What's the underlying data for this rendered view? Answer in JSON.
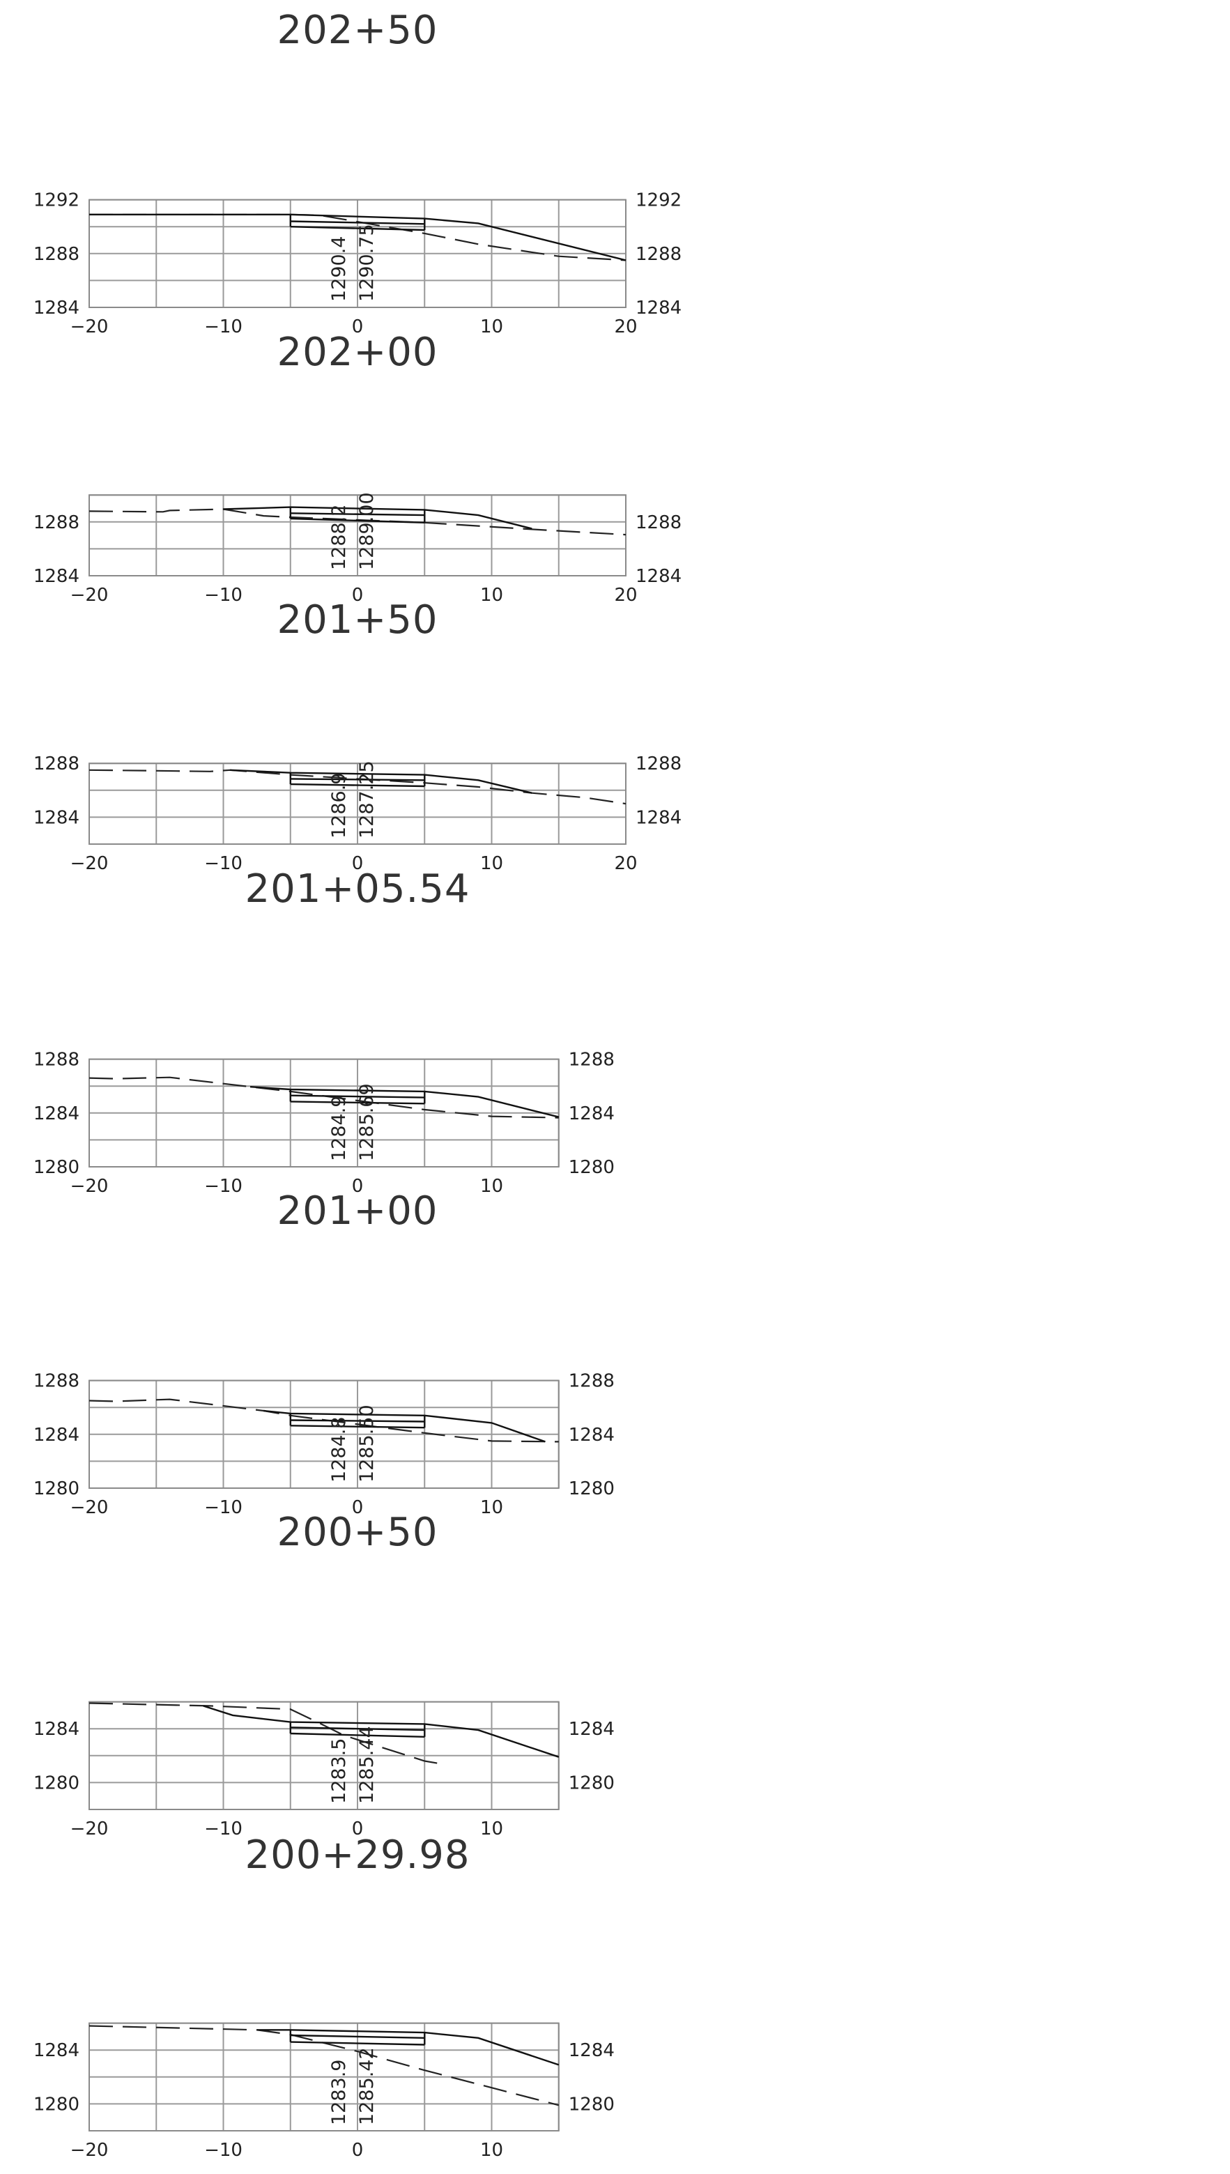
{
  "chart_data": [
    {
      "type": "line",
      "title": "202+50",
      "xlim": [
        -20,
        20
      ],
      "ylim": [
        1284,
        1292
      ],
      "yticks": [
        1284,
        1288,
        1292
      ],
      "xticks": [
        -20,
        -10,
        0,
        10,
        20
      ],
      "grid": true,
      "elev_labels": [
        "1290.4",
        "1290.75"
      ],
      "series": [
        {
          "style": "dashed",
          "x": [
            -20,
            -5,
            -2.8,
            5,
            9,
            15,
            20
          ],
          "y": [
            1290.9,
            1290.9,
            1290.85,
            1289.5,
            1288.7,
            1287.8,
            1287.5
          ]
        },
        {
          "style": "solid",
          "x": [
            -20,
            -15,
            -5,
            5,
            9,
            20
          ],
          "y": [
            1290.9,
            1290.9,
            1290.9,
            1290.6,
            1290.25,
            1287.5
          ]
        },
        {
          "style": "solid",
          "x": [
            -5,
            5
          ],
          "y": [
            1290.4,
            1290.2
          ]
        },
        {
          "style": "solid",
          "x": [
            -5,
            5
          ],
          "y": [
            1290.0,
            1289.75
          ]
        },
        {
          "style": "solid",
          "x": [
            -5,
            -5
          ],
          "y": [
            1290.9,
            1290.0
          ]
        },
        {
          "style": "solid",
          "x": [
            5,
            5
          ],
          "y": [
            1290.6,
            1289.75
          ]
        }
      ]
    },
    {
      "type": "line",
      "title": "202+00",
      "xlim": [
        -20,
        20
      ],
      "ylim": [
        1284,
        1290
      ],
      "yticks": [
        1284,
        1288
      ],
      "xticks": [
        -20,
        -10,
        0,
        10,
        20
      ],
      "grid": true,
      "elev_labels": [
        "1288.2",
        "1289.00"
      ],
      "series": [
        {
          "style": "dashed",
          "x": [
            -20,
            -14.5,
            -14,
            -10,
            -7,
            -5,
            5,
            13,
            20
          ],
          "y": [
            1288.8,
            1288.75,
            1288.85,
            1288.95,
            1288.45,
            1288.35,
            1287.95,
            1287.45,
            1287.05
          ]
        },
        {
          "style": "solid",
          "x": [
            -10,
            -5,
            5,
            9,
            13
          ],
          "y": [
            1288.95,
            1289.1,
            1288.9,
            1288.5,
            1287.5
          ]
        },
        {
          "style": "solid",
          "x": [
            -5,
            5
          ],
          "y": [
            1288.65,
            1288.5
          ]
        },
        {
          "style": "solid",
          "x": [
            -5,
            5
          ],
          "y": [
            1288.25,
            1287.95
          ]
        },
        {
          "style": "solid",
          "x": [
            -5,
            -5
          ],
          "y": [
            1289.1,
            1288.25
          ]
        },
        {
          "style": "solid",
          "x": [
            5,
            5
          ],
          "y": [
            1288.9,
            1287.95
          ]
        }
      ]
    },
    {
      "type": "line",
      "title": "201+50",
      "xlim": [
        -20,
        20
      ],
      "ylim": [
        1282,
        1288
      ],
      "yticks": [
        1284,
        1288
      ],
      "xticks": [
        -20,
        -10,
        0,
        10,
        20
      ],
      "grid": true,
      "elev_labels": [
        "1286.9",
        "1287.25"
      ],
      "series": [
        {
          "style": "dashed",
          "x": [
            -20,
            -15,
            -11,
            -9.5,
            -5,
            5,
            9,
            13,
            17,
            20
          ],
          "y": [
            1287.5,
            1287.45,
            1287.4,
            1287.5,
            1287.15,
            1286.55,
            1286.25,
            1285.8,
            1285.45,
            1285.0
          ]
        },
        {
          "style": "solid",
          "x": [
            -9.5,
            -5,
            5,
            9,
            13
          ],
          "y": [
            1287.5,
            1287.3,
            1287.15,
            1286.75,
            1285.8
          ]
        },
        {
          "style": "solid",
          "x": [
            -5,
            5
          ],
          "y": [
            1286.85,
            1286.75
          ]
        },
        {
          "style": "solid",
          "x": [
            -5,
            5
          ],
          "y": [
            1286.45,
            1286.3
          ]
        },
        {
          "style": "solid",
          "x": [
            -5,
            -5
          ],
          "y": [
            1287.3,
            1286.45
          ]
        },
        {
          "style": "solid",
          "x": [
            5,
            5
          ],
          "y": [
            1287.15,
            1286.3
          ]
        }
      ]
    },
    {
      "type": "line",
      "title": "201+05.54",
      "xlim": [
        -20,
        15
      ],
      "ylim": [
        1280,
        1288
      ],
      "yticks": [
        1280,
        1284,
        1288
      ],
      "xticks": [
        -20,
        -10,
        0,
        10
      ],
      "grid": true,
      "elev_labels": [
        "1284.9",
        "1285.69"
      ],
      "series": [
        {
          "style": "dashed",
          "x": [
            -20,
            -18,
            -14,
            -8,
            -5,
            5,
            10,
            15
          ],
          "y": [
            1286.6,
            1286.55,
            1286.65,
            1285.95,
            1285.6,
            1284.25,
            1283.75,
            1283.65
          ]
        },
        {
          "style": "solid",
          "x": [
            -8,
            -5,
            5,
            9,
            15
          ],
          "y": [
            1285.95,
            1285.75,
            1285.6,
            1285.2,
            1283.7
          ]
        },
        {
          "style": "solid",
          "x": [
            -5,
            5
          ],
          "y": [
            1285.3,
            1285.15
          ]
        },
        {
          "style": "solid",
          "x": [
            -5,
            5
          ],
          "y": [
            1284.85,
            1284.7
          ]
        },
        {
          "style": "solid",
          "x": [
            -5,
            -5
          ],
          "y": [
            1285.75,
            1284.85
          ]
        },
        {
          "style": "solid",
          "x": [
            5,
            5
          ],
          "y": [
            1285.6,
            1284.7
          ]
        }
      ]
    },
    {
      "type": "line",
      "title": "201+00",
      "xlim": [
        -20,
        15
      ],
      "ylim": [
        1280,
        1288
      ],
      "yticks": [
        1280,
        1284,
        1288
      ],
      "xticks": [
        -20,
        -10,
        0,
        10
      ],
      "grid": true,
      "elev_labels": [
        "1284.8",
        "1285.50"
      ],
      "series": [
        {
          "style": "dashed",
          "x": [
            -20,
            -18,
            -14,
            -7,
            -5,
            5,
            10,
            15
          ],
          "y": [
            1286.5,
            1286.45,
            1286.6,
            1285.75,
            1285.4,
            1284.1,
            1283.5,
            1283.45
          ]
        },
        {
          "style": "solid",
          "x": [
            -7,
            -5,
            5,
            10,
            14
          ],
          "y": [
            1285.75,
            1285.55,
            1285.4,
            1284.85,
            1283.45
          ]
        },
        {
          "style": "solid",
          "x": [
            -5,
            5
          ],
          "y": [
            1285.05,
            1284.95
          ]
        },
        {
          "style": "solid",
          "x": [
            -5,
            5
          ],
          "y": [
            1284.65,
            1284.5
          ]
        },
        {
          "style": "solid",
          "x": [
            -5,
            -5
          ],
          "y": [
            1285.55,
            1284.65
          ]
        },
        {
          "style": "solid",
          "x": [
            5,
            5
          ],
          "y": [
            1285.4,
            1284.5
          ]
        }
      ]
    },
    {
      "type": "line",
      "title": "200+50",
      "xlim": [
        -20,
        15
      ],
      "ylim": [
        1278,
        1286
      ],
      "yticks": [
        1280,
        1284
      ],
      "xticks": [
        -20,
        -10,
        0,
        10
      ],
      "grid": true,
      "elev_labels": [
        "1283.5",
        "1285.44"
      ],
      "series": [
        {
          "style": "dashed",
          "x": [
            -20,
            -11,
            -5,
            -3,
            -1,
            5,
            6.2
          ],
          "y": [
            1285.9,
            1285.7,
            1285.45,
            1284.5,
            1283.5,
            1281.6,
            1281.4
          ]
        },
        {
          "style": "solid",
          "x": [
            -11.5,
            -9.3,
            -5,
            5,
            9,
            15
          ],
          "y": [
            1285.7,
            1285.0,
            1284.5,
            1284.35,
            1283.9,
            1281.9
          ]
        },
        {
          "style": "solid",
          "x": [
            -5,
            5
          ],
          "y": [
            1284.1,
            1283.9
          ]
        },
        {
          "style": "solid",
          "x": [
            -5,
            5
          ],
          "y": [
            1283.65,
            1283.4
          ]
        },
        {
          "style": "solid",
          "x": [
            -5,
            -5
          ],
          "y": [
            1284.5,
            1283.65
          ]
        },
        {
          "style": "solid",
          "x": [
            5,
            5
          ],
          "y": [
            1284.35,
            1283.4
          ]
        }
      ]
    },
    {
      "type": "line",
      "title": "200+29.98",
      "xlim": [
        -20,
        15
      ],
      "ylim": [
        1278,
        1286
      ],
      "yticks": [
        1280,
        1284
      ],
      "xticks": [
        -20,
        -10,
        0,
        10
      ],
      "grid": true,
      "elev_labels": [
        "1283.9",
        "1285.42"
      ],
      "series": [
        {
          "style": "dashed",
          "x": [
            -20,
            -9.5,
            -7.5,
            -5,
            0,
            5,
            10,
            15
          ],
          "y": [
            1285.8,
            1285.55,
            1285.5,
            1285.15,
            1283.9,
            1282.5,
            1281.2,
            1279.9
          ]
        },
        {
          "style": "solid",
          "x": [
            -7.5,
            -5,
            5,
            9,
            15
          ],
          "y": [
            1285.5,
            1285.5,
            1285.3,
            1284.9,
            1282.9
          ]
        },
        {
          "style": "solid",
          "x": [
            -5,
            5
          ],
          "y": [
            1285.1,
            1284.9
          ]
        },
        {
          "style": "solid",
          "x": [
            -5,
            5
          ],
          "y": [
            1284.6,
            1284.4
          ]
        },
        {
          "style": "solid",
          "x": [
            -5,
            -5
          ],
          "y": [
            1285.5,
            1284.6
          ]
        },
        {
          "style": "solid",
          "x": [
            5,
            5
          ],
          "y": [
            1285.3,
            1284.4
          ]
        }
      ]
    }
  ]
}
